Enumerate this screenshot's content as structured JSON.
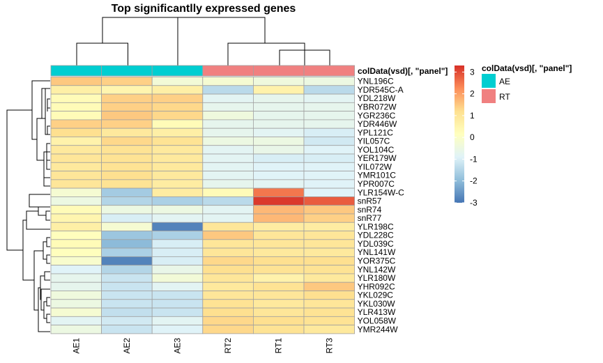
{
  "chart_data": {
    "type": "heatmap",
    "title": "Top significantlly expressed genes",
    "columns": [
      "AE1",
      "AE2",
      "AE3",
      "RT2",
      "RT1",
      "RT3"
    ],
    "annotation": {
      "label": "colData(vsd)[, \"panel\"]",
      "values": [
        "AE",
        "AE",
        "AE",
        "RT",
        "RT",
        "RT"
      ],
      "legend_title": "colData(vsd)[, \"panel\"]",
      "levels": [
        {
          "name": "AE",
          "color": "#00CED1"
        },
        {
          "name": "RT",
          "color": "#F08080"
        }
      ]
    },
    "rows": [
      "YNL196C",
      "YDR545C-A",
      "YDL218W",
      "YBR072W",
      "YGR236C",
      "YDR446W",
      "YPL121C",
      "YIL057C",
      "YOL104C",
      "YER179W",
      "YIL072W",
      "YMR101C",
      "YPR007C",
      "YLR154W-C",
      "snR57",
      "snR74",
      "snR77",
      "YLR198C",
      "YDL228C",
      "YDL039C",
      "YNL141W",
      "YOR375C",
      "YNL142W",
      "YLR180W",
      "YHR092C",
      "YKL029C",
      "YKL030W",
      "YLR413W",
      "YOL058W",
      "YMR244W"
    ],
    "values": [
      [
        1.5,
        1.4,
        -0.3,
        -0.2,
        -0.4,
        -0.5
      ],
      [
        0.7,
        0.5,
        0.7,
        -1.4,
        0.6,
        -1.4
      ],
      [
        0.3,
        1.4,
        1.4,
        -0.8,
        -0.7,
        -0.8
      ],
      [
        0.3,
        1.4,
        1.3,
        -0.7,
        -0.7,
        -0.7
      ],
      [
        0.3,
        1.5,
        1.3,
        -0.4,
        -0.7,
        -0.7
      ],
      [
        1.4,
        1.4,
        0.3,
        -0.7,
        -0.7,
        -0.7
      ],
      [
        1.2,
        0.9,
        0.7,
        -0.7,
        -0.8,
        -1.0
      ],
      [
        0.6,
        1.3,
        1.1,
        -0.5,
        -0.5,
        -1.1
      ],
      [
        0.9,
        1.1,
        0.9,
        -0.8,
        -0.6,
        -0.9
      ],
      [
        1.0,
        1.1,
        0.9,
        -0.8,
        -1.0,
        -1.0
      ],
      [
        0.9,
        1.1,
        0.9,
        -0.8,
        -0.9,
        -0.9
      ],
      [
        1.0,
        1.2,
        0.9,
        -0.8,
        -0.9,
        -0.9
      ],
      [
        1.0,
        1.1,
        0.8,
        -0.7,
        -0.8,
        -0.9
      ],
      [
        -0.2,
        -1.7,
        0.8,
        0.3,
        2.5,
        -0.9
      ],
      [
        -0.5,
        -1.5,
        -1.6,
        -1.4,
        3.2,
        2.8
      ],
      [
        0.3,
        -0.5,
        -0.5,
        -0.8,
        1.7,
        1.5
      ],
      [
        0.5,
        -1.0,
        -0.8,
        -0.8,
        1.7,
        1.4
      ],
      [
        0.7,
        -0.2,
        -2.8,
        1.0,
        0.8,
        0.8
      ],
      [
        0.2,
        -1.8,
        -1.6,
        1.5,
        1.0,
        1.0
      ],
      [
        0.3,
        -2.0,
        -1.0,
        1.0,
        1.0,
        1.0
      ],
      [
        0.2,
        -1.6,
        -1.0,
        1.0,
        0.9,
        0.9
      ],
      [
        -0.1,
        -2.8,
        -1.0,
        1.3,
        1.2,
        1.2
      ],
      [
        -0.9,
        -1.5,
        -0.6,
        1.2,
        1.1,
        1.1
      ],
      [
        -0.7,
        -1.2,
        -0.3,
        1.0,
        0.6,
        0.9
      ],
      [
        -0.7,
        -1.2,
        -0.8,
        0.9,
        1.1,
        1.5
      ],
      [
        -0.4,
        -1.2,
        -1.2,
        1.0,
        1.0,
        1.2
      ],
      [
        -0.5,
        -1.2,
        -1.2,
        1.1,
        0.9,
        1.0
      ],
      [
        -0.2,
        -1.3,
        -1.2,
        1.2,
        1.0,
        1.1
      ],
      [
        -0.8,
        -1.1,
        -0.8,
        1.3,
        1.2,
        1.1
      ],
      [
        -0.5,
        -1.2,
        -0.9,
        1.3,
        1.1,
        0.9
      ]
    ],
    "color_scale": {
      "min": -3,
      "max": 3.3,
      "ticks": [
        3,
        2,
        1,
        0,
        -1,
        -2,
        -3
      ],
      "colors": [
        "#4575B4",
        "#91BFDB",
        "#E0F3F8",
        "#FFFFBF",
        "#FEE090",
        "#FC8D59",
        "#D73027"
      ]
    },
    "grid": true,
    "legend_position": "right"
  }
}
